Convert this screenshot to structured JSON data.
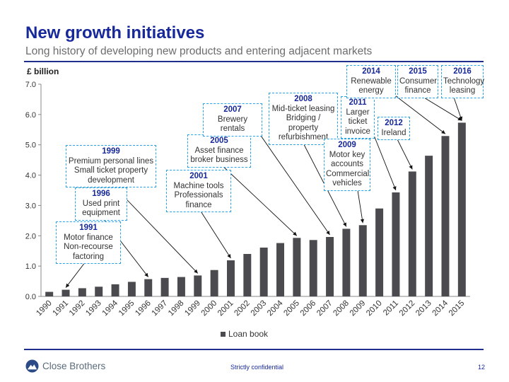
{
  "header": {
    "title": "New growth initiatives",
    "subtitle": "Long history of developing new products and entering adjacent markets"
  },
  "chart_data": {
    "type": "bar",
    "ylabel": "£ billion",
    "ylim": [
      0,
      7
    ],
    "yticks": [
      "0.0",
      "1.0",
      "2.0",
      "3.0",
      "4.0",
      "5.0",
      "6.0",
      "7.0"
    ],
    "categories": [
      "1990",
      "1991",
      "1992",
      "1993",
      "1994",
      "1995",
      "1996",
      "1997",
      "1998",
      "1999",
      "2000",
      "2001",
      "2002",
      "2003",
      "2004",
      "2005",
      "2006",
      "2007",
      "2008",
      "2009",
      "2010",
      "2011",
      "2012",
      "2013",
      "2014",
      "2015"
    ],
    "series": [
      {
        "name": "Loan book",
        "color": "#4b4b4f",
        "values": [
          0.15,
          0.22,
          0.27,
          0.32,
          0.4,
          0.48,
          0.57,
          0.61,
          0.64,
          0.69,
          0.87,
          1.19,
          1.4,
          1.61,
          1.76,
          1.93,
          1.86,
          1.96,
          2.23,
          2.35,
          2.9,
          3.43,
          4.12,
          4.64,
          5.29,
          5.73
        ]
      }
    ],
    "legend": "bottom",
    "grid": false,
    "annotations": [
      {
        "year": "1991",
        "text": "Motor finance\nNon-recourse\nfactoring",
        "target": "1991"
      },
      {
        "year": "1996",
        "text": "Used print\nequipment",
        "target": "1996"
      },
      {
        "year": "1999",
        "text": "Premium personal lines\nSmall ticket property\ndevelopment",
        "target": "1999"
      },
      {
        "year": "2001",
        "text": "Machine tools\nProfessionals\nfinance",
        "target": "2001"
      },
      {
        "year": "2005",
        "text": "Asset finance\nbroker business",
        "target": "2005"
      },
      {
        "year": "2007",
        "text": "Brewery rentals",
        "target": "2007"
      },
      {
        "year": "2008",
        "text": "Mid-ticket leasing\nBridging / property\nrefurbishment",
        "target": "2008"
      },
      {
        "year": "2009",
        "text": "Motor key\naccounts\nCommercial\nvehicles",
        "target": "2009"
      },
      {
        "year": "2011",
        "text": "Larger\nticket\ninvoice",
        "target": "2011"
      },
      {
        "year": "2012",
        "text": "Ireland",
        "target": "2012"
      },
      {
        "year": "2014",
        "text": "Renewable\nenergy",
        "target": "2014"
      },
      {
        "year": "2015",
        "text": "Consumer\nfinance",
        "target": "2015"
      },
      {
        "year": "2016",
        "text": "Technology\nleasing",
        "target": "2015"
      }
    ]
  },
  "footer": {
    "logo_text": "Close Brothers",
    "confidential": "Strictly confidential",
    "page_number": "12"
  }
}
